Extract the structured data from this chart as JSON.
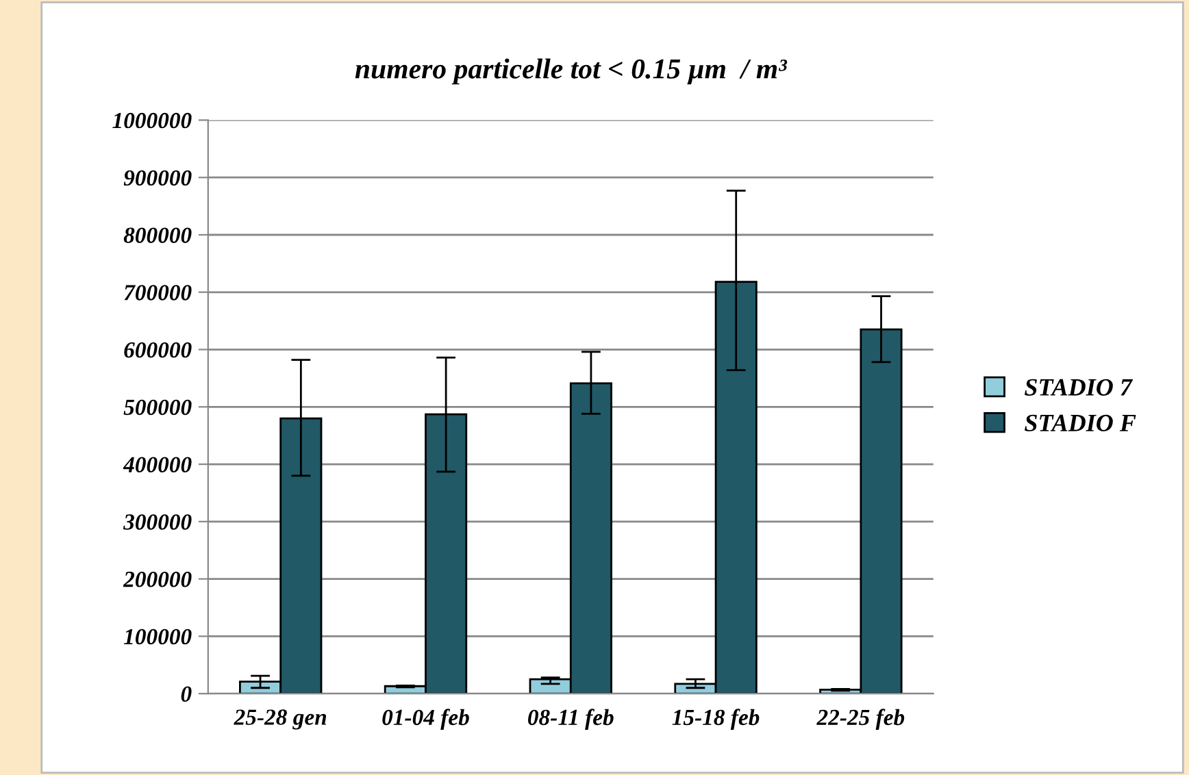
{
  "chart_data": {
    "type": "bar",
    "title": "numero particelle tot < 0.15 µm  / m³",
    "categories": [
      "25-28 gen",
      "01-04 feb",
      "08-11 feb",
      "15-18 feb",
      "22-25 feb"
    ],
    "series": [
      {
        "name": "STADIO 7",
        "color": "#92cddc",
        "values": [
          21000,
          13000,
          25000,
          17000,
          7000
        ],
        "errors": [
          [
            10000,
            31000
          ],
          [
            11000,
            14000
          ],
          [
            17000,
            28000
          ],
          [
            10000,
            25000
          ],
          [
            5000,
            8000
          ]
        ]
      },
      {
        "name": "STADIO F",
        "color": "#215967",
        "values": [
          480000,
          487000,
          541000,
          718000,
          635000
        ],
        "errors": [
          [
            380000,
            582000
          ],
          [
            387000,
            586000
          ],
          [
            488000,
            596000
          ],
          [
            564000,
            877000
          ],
          [
            578000,
            693000
          ]
        ]
      }
    ],
    "ylim": [
      0,
      1000000
    ],
    "yticks": [
      0,
      100000,
      200000,
      300000,
      400000,
      500000,
      600000,
      700000,
      800000,
      900000,
      1000000
    ],
    "grid": "y",
    "legend": "right"
  }
}
